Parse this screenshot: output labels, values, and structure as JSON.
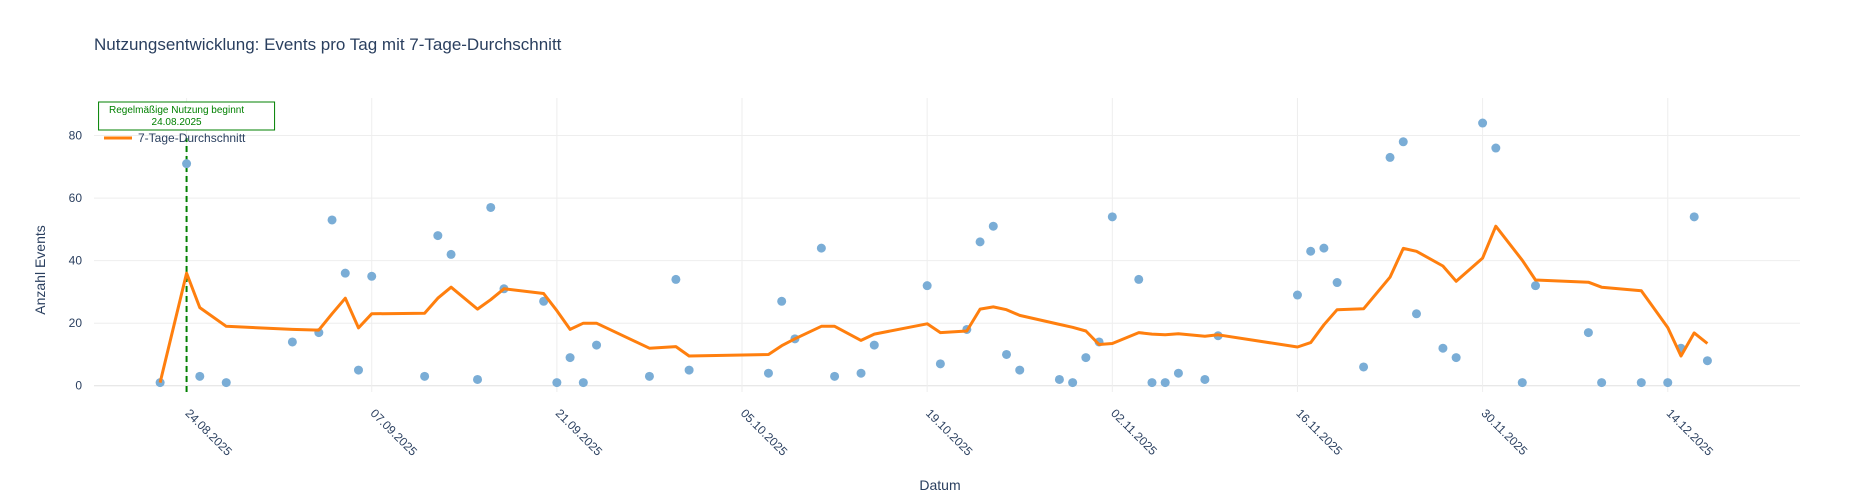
{
  "chart_data": {
    "type": "line",
    "title": "Nutzungsentwicklung: Events pro Tag mit 7-Tage-Durchschnitt",
    "xlabel": "Datum",
    "ylabel": "Anzahl Events",
    "x_tick_labels": [
      "24.08.2025",
      "07.09.2025",
      "21.09.2025",
      "05.10.2025",
      "19.10.2025",
      "02.11.2025",
      "16.11.2025",
      "30.11.2025",
      "14.12.2025"
    ],
    "x_ticks": [
      "2025-08-24",
      "2025-09-07",
      "2025-09-21",
      "2025-10-05",
      "2025-10-19",
      "2025-11-02",
      "2025-11-16",
      "2025-11-30",
      "2025-12-14"
    ],
    "y_ticks": [
      0,
      20,
      40,
      60,
      80
    ],
    "xlim": [
      "2025-08-17",
      "2025-12-24"
    ],
    "ylim": [
      -2,
      92
    ],
    "grid": true,
    "legend_position": "top-left",
    "colors": {
      "points": "#7aadd6",
      "avg_line": "#ff7f0e",
      "annotation": "#008000",
      "grid": "#eeeeee"
    },
    "series": [
      {
        "name": "",
        "mode": "markers",
        "x": [
          "2025-08-22",
          "2025-08-24",
          "2025-08-25",
          "2025-08-27",
          "2025-09-01",
          "2025-09-03",
          "2025-09-04",
          "2025-09-05",
          "2025-09-06",
          "2025-09-07",
          "2025-09-11",
          "2025-09-12",
          "2025-09-13",
          "2025-09-15",
          "2025-09-16",
          "2025-09-17",
          "2025-09-20",
          "2025-09-21",
          "2025-09-22",
          "2025-09-23",
          "2025-09-24",
          "2025-09-28",
          "2025-09-30",
          "2025-10-01",
          "2025-10-07",
          "2025-10-08",
          "2025-10-09",
          "2025-10-11",
          "2025-10-12",
          "2025-10-14",
          "2025-10-15",
          "2025-10-19",
          "2025-10-20",
          "2025-10-22",
          "2025-10-23",
          "2025-10-24",
          "2025-10-25",
          "2025-10-26",
          "2025-10-29",
          "2025-10-30",
          "2025-10-31",
          "2025-11-01",
          "2025-11-02",
          "2025-11-04",
          "2025-11-05",
          "2025-11-06",
          "2025-11-07",
          "2025-11-09",
          "2025-11-10",
          "2025-11-16",
          "2025-11-17",
          "2025-11-18",
          "2025-11-19",
          "2025-11-21",
          "2025-11-23",
          "2025-11-24",
          "2025-11-25",
          "2025-11-27",
          "2025-11-28",
          "2025-11-30",
          "2025-12-01",
          "2025-12-03",
          "2025-12-04",
          "2025-12-08",
          "2025-12-09",
          "2025-12-12",
          "2025-12-14",
          "2025-12-15",
          "2025-12-16",
          "2025-12-17"
        ],
        "y": [
          1,
          71,
          3,
          1,
          14,
          17,
          53,
          36,
          5,
          35,
          3,
          48,
          42,
          2,
          57,
          31,
          27,
          1,
          9,
          1,
          13,
          3,
          34,
          5,
          4,
          27,
          15,
          44,
          3,
          4,
          13,
          32,
          7,
          18,
          46,
          51,
          10,
          5,
          2,
          1,
          9,
          14,
          54,
          34,
          1,
          1,
          4,
          2,
          16,
          29,
          43,
          44,
          33,
          6,
          73,
          78,
          23,
          12,
          9,
          84,
          76,
          1,
          32,
          17,
          1,
          1,
          1,
          12,
          54,
          8
        ]
      },
      {
        "name": "7-Tage-Durchschnitt",
        "mode": "lines",
        "x": [
          "2025-08-22",
          "2025-08-24",
          "2025-08-25",
          "2025-08-27",
          "2025-09-01",
          "2025-09-03",
          "2025-09-04",
          "2025-09-05",
          "2025-09-06",
          "2025-09-07",
          "2025-09-11",
          "2025-09-12",
          "2025-09-13",
          "2025-09-15",
          "2025-09-16",
          "2025-09-17",
          "2025-09-20",
          "2025-09-21",
          "2025-09-22",
          "2025-09-23",
          "2025-09-24",
          "2025-09-28",
          "2025-09-30",
          "2025-10-01",
          "2025-10-07",
          "2025-10-08",
          "2025-10-09",
          "2025-10-11",
          "2025-10-12",
          "2025-10-14",
          "2025-10-15",
          "2025-10-19",
          "2025-10-20",
          "2025-10-22",
          "2025-10-23",
          "2025-10-24",
          "2025-10-25",
          "2025-10-26",
          "2025-10-29",
          "2025-10-30",
          "2025-10-31",
          "2025-11-01",
          "2025-11-02",
          "2025-11-04",
          "2025-11-05",
          "2025-11-06",
          "2025-11-07",
          "2025-11-09",
          "2025-11-10",
          "2025-11-16",
          "2025-11-17",
          "2025-11-18",
          "2025-11-19",
          "2025-11-21",
          "2025-11-23",
          "2025-11-24",
          "2025-11-25",
          "2025-11-27",
          "2025-11-28",
          "2025-11-30",
          "2025-12-01",
          "2025-12-03",
          "2025-12-04",
          "2025-12-08",
          "2025-12-09",
          "2025-12-12",
          "2025-12-14",
          "2025-12-15",
          "2025-12-16",
          "2025-12-17"
        ],
        "y": [
          1,
          36,
          25,
          19,
          18,
          17.8,
          23,
          28,
          18.5,
          23,
          23.2,
          28,
          31.5,
          24.5,
          27.5,
          31,
          29.5,
          24,
          18,
          20,
          20,
          12,
          12.5,
          9.5,
          10,
          12.8,
          15,
          19,
          19,
          14.5,
          16.5,
          19.8,
          17,
          17.5,
          24.5,
          25.2,
          24.3,
          22.5,
          19.6,
          18.7,
          17.5,
          13.2,
          13.5,
          17,
          16.5,
          16.3,
          16.6,
          15.8,
          16.3,
          12.4,
          13.8,
          19.5,
          24.3,
          24.6,
          34.7,
          43.9,
          43,
          38.3,
          33.4,
          40.8,
          51,
          40.1,
          33.8,
          33.1,
          31.5,
          30.4,
          18.6,
          9.5,
          16.9,
          13.5
        ]
      }
    ],
    "annotation": {
      "x": "2025-08-24",
      "line1": "Regelmäßige Nutzung beginnt",
      "line2": "24.08.2025"
    }
  }
}
